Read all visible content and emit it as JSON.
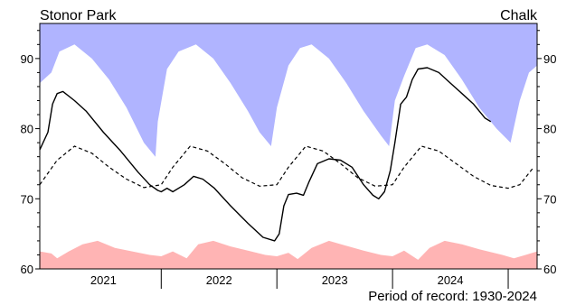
{
  "chart_data": {
    "type": "line",
    "site_name": "Stonor Park",
    "geology": "Chalk",
    "record_note": "Period of record: 1930-2024",
    "xlim": [
      2020.45,
      2024.75
    ],
    "ylim": [
      60,
      95
    ],
    "yticks": [
      60,
      70,
      80,
      90
    ],
    "year_labels": [
      {
        "label": "2021",
        "x": 2021.0
      },
      {
        "label": "2022",
        "x": 2022.0
      },
      {
        "label": "2023",
        "x": 2023.0
      },
      {
        "label": "2024",
        "x": 2024.0
      }
    ],
    "year_boundaries": [
      2021.5,
      2022.5,
      2023.5,
      2024.5
    ],
    "grid": false,
    "colors": {
      "max_band": "#b0b4ff",
      "min_band": "#ffb4b4",
      "level_line": "#000000",
      "average_line": "#000000"
    },
    "series": [
      {
        "style": "max-envelope",
        "points": [
          [
            2020.45,
            86.5
          ],
          [
            2020.55,
            88.0
          ],
          [
            2020.62,
            91.0
          ],
          [
            2020.75,
            92.0
          ],
          [
            2020.9,
            90.0
          ],
          [
            2021.05,
            87.0
          ],
          [
            2021.2,
            83.0
          ],
          [
            2021.35,
            78.0
          ],
          [
            2021.45,
            76.0
          ],
          [
            2021.47,
            81.0
          ],
          [
            2021.55,
            88.5
          ],
          [
            2021.65,
            91.0
          ],
          [
            2021.8,
            92.0
          ],
          [
            2021.95,
            90.0
          ],
          [
            2022.1,
            86.5
          ],
          [
            2022.25,
            82.5
          ],
          [
            2022.35,
            79.5
          ],
          [
            2022.45,
            77.5
          ],
          [
            2022.5,
            83.0
          ],
          [
            2022.6,
            89.0
          ],
          [
            2022.7,
            91.5
          ],
          [
            2022.8,
            92.0
          ],
          [
            2022.95,
            90.0
          ],
          [
            2023.1,
            86.5
          ],
          [
            2023.25,
            82.5
          ],
          [
            2023.4,
            79.0
          ],
          [
            2023.47,
            77.5
          ],
          [
            2023.52,
            84.0
          ],
          [
            2023.6,
            87.5
          ],
          [
            2023.7,
            91.5
          ],
          [
            2023.8,
            92.0
          ],
          [
            2023.95,
            90.5
          ],
          [
            2024.1,
            87.0
          ],
          [
            2024.25,
            83.0
          ],
          [
            2024.4,
            80.0
          ],
          [
            2024.52,
            78.0
          ],
          [
            2024.6,
            84.0
          ],
          [
            2024.68,
            88.0
          ],
          [
            2024.75,
            89.0
          ]
        ]
      },
      {
        "style": "min-envelope",
        "points": [
          [
            2020.45,
            62.5
          ],
          [
            2020.55,
            62.2
          ],
          [
            2020.6,
            61.5
          ],
          [
            2020.7,
            62.5
          ],
          [
            2020.82,
            63.5
          ],
          [
            2020.95,
            64.0
          ],
          [
            2021.1,
            63.0
          ],
          [
            2021.25,
            62.5
          ],
          [
            2021.4,
            62.0
          ],
          [
            2021.5,
            61.8
          ],
          [
            2021.6,
            62.5
          ],
          [
            2021.72,
            61.5
          ],
          [
            2021.82,
            63.5
          ],
          [
            2021.95,
            64.0
          ],
          [
            2022.1,
            63.2
          ],
          [
            2022.25,
            62.6
          ],
          [
            2022.4,
            62.0
          ],
          [
            2022.5,
            61.8
          ],
          [
            2022.6,
            62.3
          ],
          [
            2022.68,
            61.4
          ],
          [
            2022.8,
            63.0
          ],
          [
            2022.95,
            64.0
          ],
          [
            2023.1,
            63.3
          ],
          [
            2023.25,
            62.6
          ],
          [
            2023.4,
            62.0
          ],
          [
            2023.5,
            61.8
          ],
          [
            2023.6,
            62.6
          ],
          [
            2023.72,
            61.3
          ],
          [
            2023.82,
            63.0
          ],
          [
            2023.95,
            64.0
          ],
          [
            2024.1,
            63.5
          ],
          [
            2024.25,
            62.8
          ],
          [
            2024.45,
            62.0
          ],
          [
            2024.55,
            61.5
          ],
          [
            2024.65,
            62.0
          ],
          [
            2024.75,
            62.5
          ]
        ]
      },
      {
        "name": "",
        "style": "average",
        "points": [
          [
            2020.45,
            72.0
          ],
          [
            2020.6,
            75.5
          ],
          [
            2020.75,
            77.5
          ],
          [
            2020.9,
            76.5
          ],
          [
            2021.05,
            74.5
          ],
          [
            2021.2,
            72.8
          ],
          [
            2021.35,
            71.6
          ],
          [
            2021.5,
            72.0
          ],
          [
            2021.6,
            74.5
          ],
          [
            2021.75,
            77.5
          ],
          [
            2021.9,
            76.8
          ],
          [
            2022.05,
            75.0
          ],
          [
            2022.2,
            73.0
          ],
          [
            2022.35,
            71.8
          ],
          [
            2022.5,
            72.0
          ],
          [
            2022.6,
            74.5
          ],
          [
            2022.75,
            77.5
          ],
          [
            2022.9,
            76.8
          ],
          [
            2023.05,
            75.0
          ],
          [
            2023.2,
            73.0
          ],
          [
            2023.35,
            71.8
          ],
          [
            2023.5,
            72.0
          ],
          [
            2023.6,
            74.5
          ],
          [
            2023.75,
            77.5
          ],
          [
            2023.9,
            76.8
          ],
          [
            2024.05,
            75.0
          ],
          [
            2024.2,
            73.2
          ],
          [
            2024.35,
            71.9
          ],
          [
            2024.5,
            71.5
          ],
          [
            2024.6,
            72.0
          ],
          [
            2024.72,
            74.5
          ]
        ]
      },
      {
        "name": "",
        "style": "level",
        "points": [
          [
            2020.45,
            77.0
          ],
          [
            2020.52,
            79.5
          ],
          [
            2020.56,
            83.5
          ],
          [
            2020.6,
            85.0
          ],
          [
            2020.65,
            85.3
          ],
          [
            2020.75,
            84.0
          ],
          [
            2020.85,
            82.5
          ],
          [
            2021.0,
            79.5
          ],
          [
            2021.15,
            76.8
          ],
          [
            2021.3,
            73.8
          ],
          [
            2021.4,
            72.0
          ],
          [
            2021.47,
            71.2
          ],
          [
            2021.5,
            71.0
          ],
          [
            2021.55,
            71.5
          ],
          [
            2021.6,
            71.0
          ],
          [
            2021.7,
            72.0
          ],
          [
            2021.78,
            73.2
          ],
          [
            2021.86,
            72.8
          ],
          [
            2021.96,
            71.5
          ],
          [
            2022.1,
            69.0
          ],
          [
            2022.25,
            66.5
          ],
          [
            2022.38,
            64.5
          ],
          [
            2022.48,
            64.0
          ],
          [
            2022.52,
            65.0
          ],
          [
            2022.56,
            69.0
          ],
          [
            2022.6,
            70.6
          ],
          [
            2022.67,
            70.8
          ],
          [
            2022.73,
            70.5
          ],
          [
            2022.78,
            72.5
          ],
          [
            2022.85,
            75.0
          ],
          [
            2022.95,
            75.7
          ],
          [
            2023.05,
            75.5
          ],
          [
            2023.15,
            74.5
          ],
          [
            2023.25,
            72.0
          ],
          [
            2023.33,
            70.5
          ],
          [
            2023.38,
            70.0
          ],
          [
            2023.43,
            71.0
          ],
          [
            2023.48,
            74.0
          ],
          [
            2023.52,
            78.0
          ],
          [
            2023.57,
            83.5
          ],
          [
            2023.62,
            84.5
          ],
          [
            2023.67,
            87.0
          ],
          [
            2023.72,
            88.5
          ],
          [
            2023.8,
            88.7
          ],
          [
            2023.9,
            88.0
          ],
          [
            2024.0,
            86.5
          ],
          [
            2024.1,
            85.0
          ],
          [
            2024.2,
            83.5
          ],
          [
            2024.3,
            81.5
          ],
          [
            2024.35,
            81.0
          ]
        ]
      }
    ]
  }
}
